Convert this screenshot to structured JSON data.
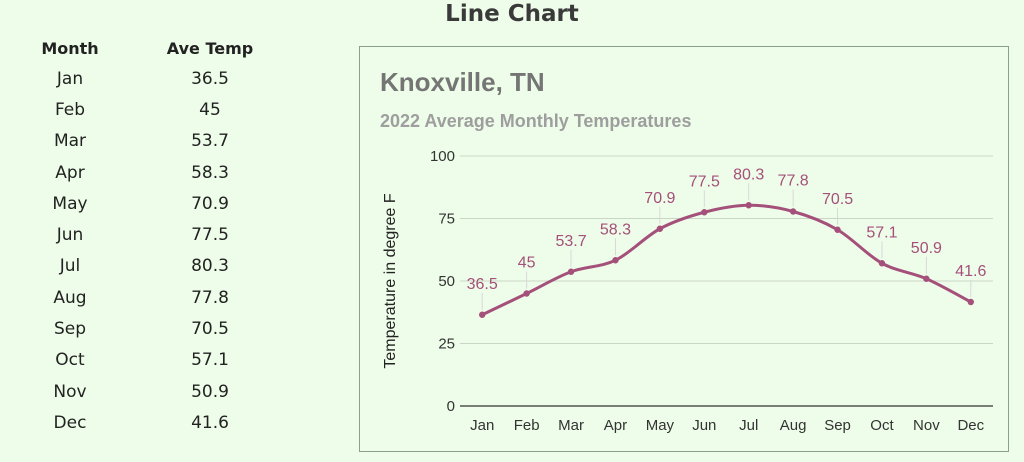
{
  "page": {
    "title": "Line Chart"
  },
  "table": {
    "headers": [
      "Month",
      "Ave Temp"
    ],
    "rows": [
      [
        "Jan",
        "36.5"
      ],
      [
        "Feb",
        "45"
      ],
      [
        "Mar",
        "53.7"
      ],
      [
        "Apr",
        "58.3"
      ],
      [
        "May",
        "70.9"
      ],
      [
        "Jun",
        "77.5"
      ],
      [
        "Jul",
        "80.3"
      ],
      [
        "Aug",
        "77.8"
      ],
      [
        "Sep",
        "70.5"
      ],
      [
        "Oct",
        "57.1"
      ],
      [
        "Nov",
        "50.9"
      ],
      [
        "Dec",
        "41.6"
      ]
    ]
  },
  "colors": {
    "background": "#eefde9",
    "line": "#a4507a",
    "label": "#a4507a",
    "grid": "#c9d6c5",
    "baseline": "#333333"
  },
  "chart_data": {
    "type": "line",
    "title": "Knoxville, TN",
    "subtitle": "2022 Average Monthly Temperatures",
    "xlabel": "",
    "ylabel": "Temperature in degree F",
    "categories": [
      "Jan",
      "Feb",
      "Mar",
      "Apr",
      "May",
      "Jun",
      "Jul",
      "Aug",
      "Sep",
      "Oct",
      "Nov",
      "Dec"
    ],
    "series": [
      {
        "values": [
          36.5,
          45,
          53.7,
          58.3,
          70.9,
          77.5,
          80.3,
          77.8,
          70.5,
          57.1,
          50.9,
          41.6
        ],
        "data_labels": [
          "36.5",
          "45",
          "53.7",
          "58.3",
          "70.9",
          "77.5",
          "80.3",
          "77.8",
          "70.5",
          "57.1",
          "50.9",
          "41.6"
        ]
      }
    ],
    "ylim": [
      0,
      100
    ],
    "yticks": [
      0,
      25,
      50,
      75,
      100
    ],
    "ytick_labels": [
      "0",
      "25",
      "50",
      "75",
      "100"
    ],
    "grid": true,
    "legend": "none",
    "smooth": true
  }
}
